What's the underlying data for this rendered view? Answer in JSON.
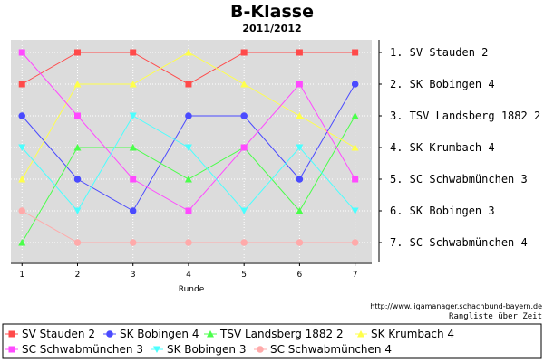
{
  "chart_data": {
    "type": "line",
    "title": "B-Klasse",
    "subtitle": "2011/2012",
    "xlabel": "Runde",
    "x": [
      1,
      2,
      3,
      4,
      5,
      6,
      7
    ],
    "x_ticks": [
      "1",
      "2",
      "3",
      "4",
      "5",
      "6",
      "7"
    ],
    "xlim": [
      0.8,
      7.3
    ],
    "ylim": [
      0.6,
      7.6
    ],
    "y_inverted": true,
    "grid": true,
    "background": "#dcdcdc",
    "final_ranking": [
      "1. SV Stauden 2",
      "2. SK Bobingen 4",
      "3. TSV Landsberg 1882 2",
      "4. SK Krumbach 4",
      "5. SC Schwabmünchen 3",
      "6. SK Bobingen 3",
      "7. SC Schwabmünchen 4"
    ],
    "series": [
      {
        "name": "SV Stauden 2",
        "color": "#ff4a4a",
        "marker": "square",
        "values": [
          2,
          1,
          1,
          2,
          1,
          1,
          1
        ]
      },
      {
        "name": "SK Bobingen 4",
        "color": "#4a4aff",
        "marker": "circle",
        "values": [
          3,
          5,
          6,
          3,
          3,
          5,
          2
        ]
      },
      {
        "name": "TSV Landsberg 1882 2",
        "color": "#4aff4a",
        "marker": "triangle-up",
        "values": [
          7,
          4,
          4,
          5,
          4,
          6,
          3
        ]
      },
      {
        "name": "SK Krumbach 4",
        "color": "#ffff4a",
        "marker": "triangle-up",
        "values": [
          5,
          2,
          2,
          1,
          2,
          3,
          4
        ]
      },
      {
        "name": "SC Schwabmünchen 3",
        "color": "#ff4aff",
        "marker": "square",
        "values": [
          1,
          3,
          5,
          6,
          4,
          2,
          5
        ]
      },
      {
        "name": "SK Bobingen 3",
        "color": "#4affff",
        "marker": "triangle-down",
        "values": [
          4,
          6,
          3,
          4,
          6,
          4,
          6
        ]
      },
      {
        "name": "SC Schwabmünchen 4",
        "color": "#ffaaaa",
        "marker": "circle",
        "values": [
          6,
          7,
          7,
          7,
          7,
          7,
          7
        ]
      }
    ],
    "credit": "http://www.ligamanager.schachbund-bayern.de",
    "caption": "Rangliste über Zeit",
    "legend_position": "bottom"
  }
}
